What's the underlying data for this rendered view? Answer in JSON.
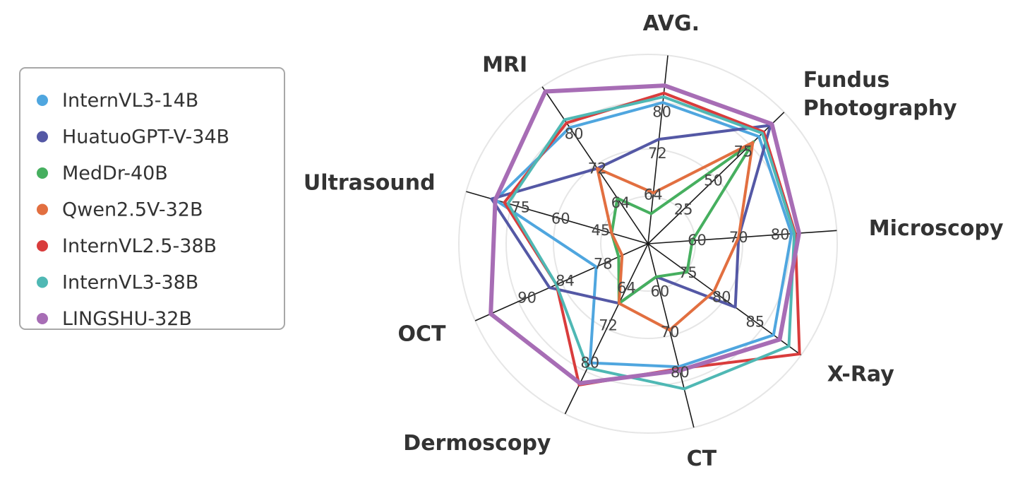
{
  "chart_data": {
    "type": "radar",
    "axes": [
      {
        "label": "AVG.",
        "ticks": [
          "80",
          "72",
          "64"
        ]
      },
      {
        "label": "Fundus\nPhotography",
        "ticks": [
          "75",
          "50",
          "25"
        ]
      },
      {
        "label": "Microscopy",
        "ticks": [
          "80",
          "70",
          "60"
        ]
      },
      {
        "label": "X-Ray",
        "ticks": [
          "85",
          "80",
          "75"
        ]
      },
      {
        "label": "CT",
        "ticks": [
          "80",
          "70",
          "60"
        ]
      },
      {
        "label": "Dermoscopy",
        "ticks": [
          "80",
          "72",
          "64"
        ]
      },
      {
        "label": "OCT",
        "ticks": [
          "90",
          "84",
          "78"
        ]
      },
      {
        "label": "Ultrasound",
        "ticks": [
          "75",
          "60",
          "45"
        ]
      },
      {
        "label": "MRI",
        "ticks": [
          "80",
          "72",
          "64"
        ]
      }
    ],
    "series": [
      {
        "name": "InternVL3-14B",
        "color": "#4FA6DF",
        "r": [
          0.75,
          0.815,
          0.76,
          0.82,
          0.67,
          0.7,
          0.3,
          0.84,
          0.74
        ]
      },
      {
        "name": "HuatuoGPT-V-34B",
        "color": "#5458A5",
        "r": [
          0.555,
          0.9,
          0.48,
          0.57,
          0.18,
          0.35,
          0.57,
          0.86,
          0.48
        ]
      },
      {
        "name": "MedDr-40B",
        "color": "#46AF5F",
        "r": [
          0.16,
          0.775,
          0.235,
          0.255,
          0.18,
          0.35,
          0.17,
          0.2,
          0.29
        ]
      },
      {
        "name": "Qwen2.5V-32B",
        "color": "#E26F40",
        "r": [
          0.27,
          0.77,
          0.48,
          0.43,
          0.47,
          0.35,
          0.15,
          0.2,
          0.48
        ]
      },
      {
        "name": "InternVL2.5-38B",
        "color": "#D93C3C",
        "r": [
          0.8,
          0.85,
          0.78,
          0.99,
          0.68,
          0.83,
          0.53,
          0.79,
          0.77
        ]
      },
      {
        "name": "InternVL3-38B",
        "color": "#4FB8B4",
        "r": [
          0.78,
          0.84,
          0.775,
          0.92,
          0.79,
          0.73,
          0.53,
          0.77,
          0.79
        ]
      },
      {
        "name": "LINGSHU-32B",
        "color": "#A76DB5",
        "r": [
          0.84,
          0.91,
          0.8,
          0.86,
          0.69,
          0.82,
          0.91,
          0.84,
          0.97
        ]
      }
    ],
    "grid": true,
    "legend": "left"
  }
}
